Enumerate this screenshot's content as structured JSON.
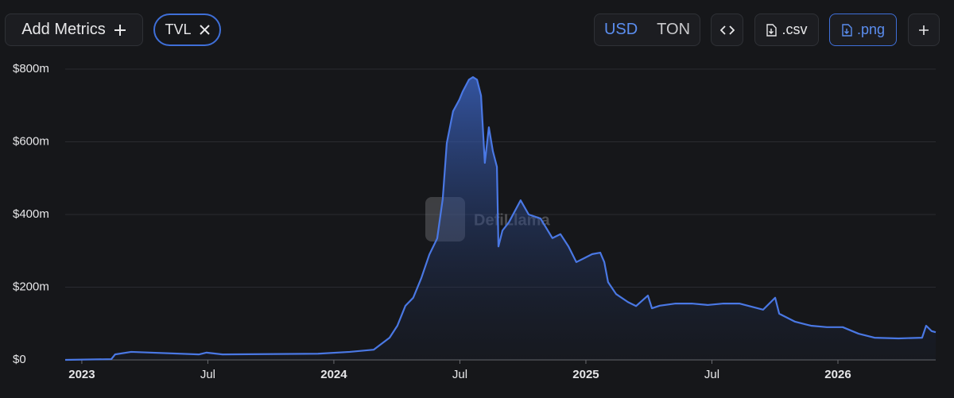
{
  "toolbar": {
    "add_metrics": "Add Metrics",
    "metric_chip": "TVL",
    "currencies": [
      "USD",
      "TON"
    ],
    "csv": ".csv",
    "png": ".png"
  },
  "watermark": "DefiLlama",
  "chart_data": {
    "type": "area",
    "series": [
      {
        "name": "TVL",
        "color": "#4a78e4",
        "x": [
          2022.934,
          2023.117,
          2023.132,
          2023.196,
          2023.464,
          2023.495,
          2023.558,
          2023.937,
          2024.063,
          2024.158,
          2024.221,
          2024.252,
          2024.284,
          2024.315,
          2024.347,
          2024.379,
          2024.41,
          2024.432,
          2024.448,
          2024.473,
          2024.498,
          2024.511,
          2024.536,
          2024.552,
          2024.568,
          2024.584,
          2024.599,
          2024.615,
          2024.631,
          2024.647,
          2024.653,
          2024.669,
          2024.694,
          2024.741,
          2024.773,
          2024.82,
          2024.867,
          2024.899,
          2024.931,
          2024.962,
          2024.994,
          2025.025,
          2025.057,
          2025.073,
          2025.088,
          2025.12,
          2025.167,
          2025.199,
          2025.246,
          2025.262,
          2025.293,
          2025.356,
          2025.42,
          2025.483,
          2025.546,
          2025.609,
          2025.703,
          2025.751,
          2025.767,
          2025.83,
          2025.893,
          2025.956,
          2026.019,
          2026.082,
          2026.145,
          2026.24,
          2026.334,
          2026.35,
          2026.372,
          2026.388
        ],
        "values": [
          0,
          2,
          15,
          22,
          15,
          20,
          15,
          17,
          22,
          28,
          61,
          94,
          149,
          171,
          225,
          290,
          334,
          443,
          596,
          684,
          716,
          738,
          771,
          778,
          771,
          727,
          542,
          640,
          574,
          531,
          312,
          356,
          378,
          439,
          400,
          389,
          335,
          346,
          312,
          269,
          280,
          291,
          295,
          269,
          214,
          181,
          159,
          148,
          177,
          142,
          149,
          155,
          155,
          151,
          155,
          155,
          138,
          171,
          127,
          105,
          94,
          90,
          90,
          72,
          61,
          59,
          61,
          94,
          79,
          76
        ]
      }
    ],
    "xlim": [
      2022.934,
      2026.388
    ],
    "xticks": [
      {
        "value": 2023,
        "label": "2023"
      },
      {
        "value": 2023.5,
        "label": "Jul"
      },
      {
        "value": 2024,
        "label": "2024"
      },
      {
        "value": 2024.5,
        "label": "Jul"
      },
      {
        "value": 2025,
        "label": "2025"
      },
      {
        "value": 2025.5,
        "label": "Jul"
      },
      {
        "value": 2026,
        "label": "2026"
      }
    ],
    "ylim": [
      0,
      800
    ],
    "yticks": [
      {
        "value": 0,
        "label": "$0"
      },
      {
        "value": 200,
        "label": "$200m"
      },
      {
        "value": 400,
        "label": "$400m"
      },
      {
        "value": 600,
        "label": "$600m"
      },
      {
        "value": 800,
        "label": "$800m"
      }
    ],
    "grid": true
  }
}
